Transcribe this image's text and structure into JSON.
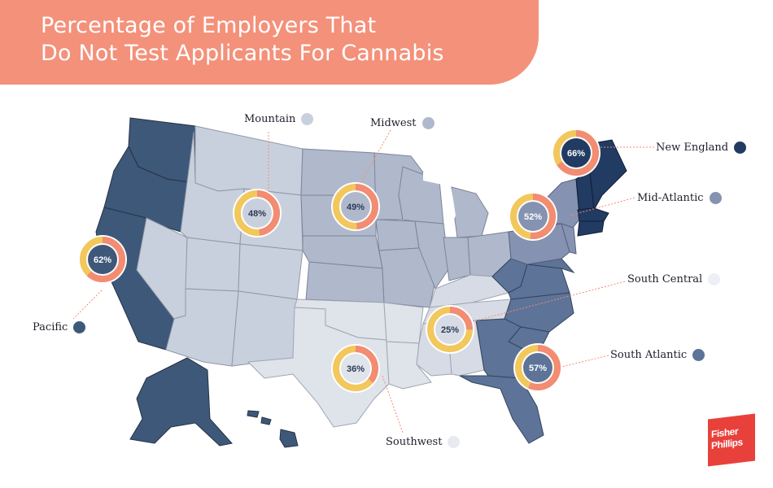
{
  "title": {
    "line1": "Percentage of Employers That",
    "line2": "Do Not Test Applicants For Cannabis"
  },
  "colors": {
    "banner": "#f4917a",
    "orange": "#f28c73",
    "yellow": "#f2c75c",
    "new_england": "#213b63",
    "pacific": "#3e5879",
    "south_atlantic": "#5d7398",
    "mid_atlantic": "#8592b1",
    "midwest": "#b0b9cb",
    "mountain": "#c9d0dd",
    "south_central": "#d6dbe5",
    "southwest": "#dfe3ea"
  },
  "regions": [
    {
      "name": "Pacific",
      "percent_label": "62%",
      "value": 62
    },
    {
      "name": "Mountain",
      "percent_label": "48%",
      "value": 48
    },
    {
      "name": "Midwest",
      "percent_label": "49%",
      "value": 49
    },
    {
      "name": "New England",
      "percent_label": "66%",
      "value": 66
    },
    {
      "name": "Mid-Atlantic",
      "percent_label": "52%",
      "value": 52
    },
    {
      "name": "South Central",
      "percent_label": "25%",
      "value": 25
    },
    {
      "name": "South Atlantic",
      "percent_label": "57%",
      "value": 57
    },
    {
      "name": "Southwest",
      "percent_label": "36%",
      "value": 36
    }
  ],
  "logo": {
    "line1": "Fisher",
    "line2": "Phillips"
  }
}
